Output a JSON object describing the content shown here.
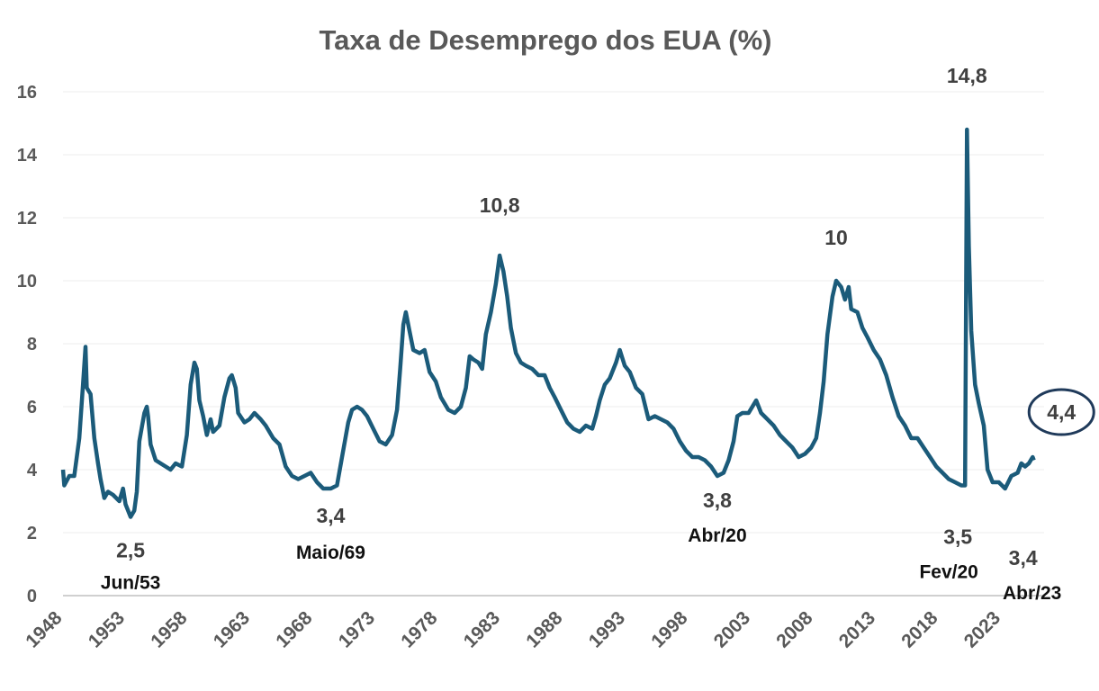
{
  "chart_data": {
    "type": "line",
    "title": "Taxa de Desemprego dos EUA (%)",
    "xlabel": "",
    "ylabel": "",
    "ylim": [
      0,
      16
    ],
    "xlim": [
      1948,
      2025.6
    ],
    "grid": true,
    "yticks": [
      "0",
      "2",
      "4",
      "6",
      "8",
      "10",
      "12",
      "14",
      "16"
    ],
    "xticks": [
      "1948",
      "1953",
      "1958",
      "1963",
      "1968",
      "1973",
      "1978",
      "1983",
      "1988",
      "1993",
      "1998",
      "2003",
      "2008",
      "2013",
      "2018",
      "2023"
    ],
    "line_color": "#1b5b7a",
    "series": [
      {
        "name": "Taxa de Desemprego",
        "x": [
          1948.0,
          1948.1,
          1948.5,
          1948.9,
          1949.3,
          1949.6,
          1949.8,
          1949.9,
          1950.2,
          1950.5,
          1950.8,
          1951.0,
          1951.3,
          1951.6,
          1952.0,
          1952.5,
          1952.8,
          1953.0,
          1953.4,
          1953.7,
          1953.9,
          1954.1,
          1954.5,
          1954.7,
          1954.8,
          1955.0,
          1955.4,
          1955.8,
          1956.2,
          1956.6,
          1957.0,
          1957.5,
          1957.9,
          1958.2,
          1958.5,
          1958.7,
          1958.9,
          1959.2,
          1959.5,
          1959.8,
          1960.0,
          1960.5,
          1960.9,
          1961.3,
          1961.5,
          1961.8,
          1962.0,
          1962.5,
          1962.9,
          1963.3,
          1963.8,
          1964.2,
          1964.8,
          1965.3,
          1965.8,
          1966.3,
          1966.8,
          1967.3,
          1967.8,
          1968.3,
          1968.8,
          1969.4,
          1969.9,
          1970.3,
          1970.8,
          1971.1,
          1971.5,
          1971.9,
          1972.3,
          1972.8,
          1973.3,
          1973.8,
          1974.3,
          1974.7,
          1974.95,
          1975.2,
          1975.4,
          1975.7,
          1976.0,
          1976.5,
          1976.9,
          1977.3,
          1977.8,
          1978.2,
          1978.8,
          1979.3,
          1979.8,
          1980.2,
          1980.5,
          1980.8,
          1981.2,
          1981.5,
          1981.8,
          1982.2,
          1982.6,
          1982.9,
          1983.2,
          1983.5,
          1983.8,
          1984.2,
          1984.6,
          1985.0,
          1985.5,
          1986.0,
          1986.5,
          1986.9,
          1987.3,
          1987.8,
          1988.3,
          1988.8,
          1989.3,
          1989.8,
          1990.3,
          1990.6,
          1990.9,
          1991.3,
          1991.7,
          1992.2,
          1992.5,
          1992.9,
          1993.3,
          1993.8,
          1994.3,
          1994.8,
          1995.3,
          1995.8,
          1996.3,
          1996.8,
          1997.3,
          1997.8,
          1998.3,
          1998.8,
          1999.3,
          1999.8,
          2000.3,
          2000.8,
          2001.2,
          2001.6,
          2001.9,
          2002.3,
          2002.8,
          2003.4,
          2003.8,
          2004.3,
          2004.8,
          2005.3,
          2005.8,
          2006.3,
          2006.8,
          2007.3,
          2007.8,
          2008.2,
          2008.5,
          2008.8,
          2009.1,
          2009.5,
          2009.8,
          2010.2,
          2010.5,
          2010.8,
          2011.0,
          2011.5,
          2011.9,
          2012.3,
          2012.8,
          2013.3,
          2013.8,
          2014.3,
          2014.8,
          2015.3,
          2015.8,
          2016.3,
          2016.8,
          2017.3,
          2017.8,
          2018.3,
          2018.8,
          2019.3,
          2019.8,
          2020.1,
          2020.25,
          2020.4,
          2020.6,
          2020.9,
          2021.2,
          2021.6,
          2021.9,
          2022.3,
          2022.8,
          2023.3,
          2023.8,
          2024.3,
          2024.6,
          2024.9,
          2025.2,
          2025.5,
          2025.6
        ],
        "values": [
          4.0,
          3.5,
          3.8,
          3.8,
          5.0,
          6.7,
          7.9,
          6.6,
          6.4,
          5.0,
          4.2,
          3.7,
          3.1,
          3.3,
          3.2,
          3.0,
          3.4,
          2.9,
          2.5,
          2.7,
          3.3,
          4.9,
          5.8,
          6.0,
          5.7,
          4.8,
          4.3,
          4.2,
          4.1,
          4.0,
          4.2,
          4.1,
          5.1,
          6.7,
          7.4,
          7.2,
          6.2,
          5.7,
          5.1,
          5.6,
          5.2,
          5.4,
          6.3,
          6.9,
          7.0,
          6.6,
          5.8,
          5.5,
          5.6,
          5.8,
          5.6,
          5.4,
          5.0,
          4.8,
          4.1,
          3.8,
          3.7,
          3.8,
          3.9,
          3.6,
          3.4,
          3.4,
          3.5,
          4.4,
          5.5,
          5.9,
          6.0,
          5.9,
          5.7,
          5.3,
          4.9,
          4.8,
          5.1,
          5.9,
          7.2,
          8.6,
          9.0,
          8.4,
          7.8,
          7.7,
          7.8,
          7.1,
          6.8,
          6.3,
          5.9,
          5.8,
          6.0,
          6.6,
          7.6,
          7.5,
          7.4,
          7.2,
          8.3,
          9.0,
          9.9,
          10.8,
          10.3,
          9.5,
          8.5,
          7.7,
          7.4,
          7.3,
          7.2,
          7.0,
          7.0,
          6.6,
          6.3,
          5.9,
          5.5,
          5.3,
          5.2,
          5.4,
          5.3,
          5.7,
          6.2,
          6.7,
          6.9,
          7.4,
          7.8,
          7.3,
          7.1,
          6.6,
          6.4,
          5.6,
          5.7,
          5.6,
          5.5,
          5.3,
          4.9,
          4.6,
          4.4,
          4.4,
          4.3,
          4.1,
          3.8,
          3.9,
          4.3,
          4.9,
          5.7,
          5.8,
          5.8,
          6.2,
          5.8,
          5.6,
          5.4,
          5.1,
          4.9,
          4.7,
          4.4,
          4.5,
          4.7,
          5.0,
          5.8,
          6.8,
          8.3,
          9.5,
          10.0,
          9.8,
          9.4,
          9.8,
          9.1,
          9.0,
          8.5,
          8.2,
          7.8,
          7.5,
          7.0,
          6.3,
          5.7,
          5.4,
          5.0,
          5.0,
          4.7,
          4.4,
          4.1,
          3.9,
          3.7,
          3.6,
          3.5,
          3.5,
          14.8,
          11.1,
          8.4,
          6.7,
          6.1,
          5.4,
          4.0,
          3.6,
          3.6,
          3.4,
          3.8,
          3.9,
          4.2,
          4.1,
          4.2,
          4.4,
          4.3
        ]
      }
    ],
    "annotations": [
      {
        "value_label": "2,5",
        "date_label": "Jun/53",
        "x": 1953.4,
        "y": 2.5
      },
      {
        "value_label": "3,4",
        "date_label": "Maio/69",
        "x": 1969.4,
        "y": 3.4
      },
      {
        "value_label": "10,8",
        "date_label": "",
        "x": 1982.9,
        "y": 10.8
      },
      {
        "value_label": "3,8",
        "date_label": "Abr/20",
        "x": 2000.3,
        "y": 3.8
      },
      {
        "value_label": "10",
        "date_label": "",
        "x": 2009.8,
        "y": 10.0
      },
      {
        "value_label": "14,8",
        "date_label": "",
        "x": 2020.25,
        "y": 14.8
      },
      {
        "value_label": "3,5",
        "date_label": "Fev/20",
        "x": 2020.1,
        "y": 3.5
      },
      {
        "value_label": "3,4",
        "date_label": "Abr/23",
        "x": 2023.3,
        "y": 3.4
      },
      {
        "value_label": "4,4",
        "date_label": "",
        "x": 2025.5,
        "y": 4.4,
        "circled": true
      }
    ]
  }
}
